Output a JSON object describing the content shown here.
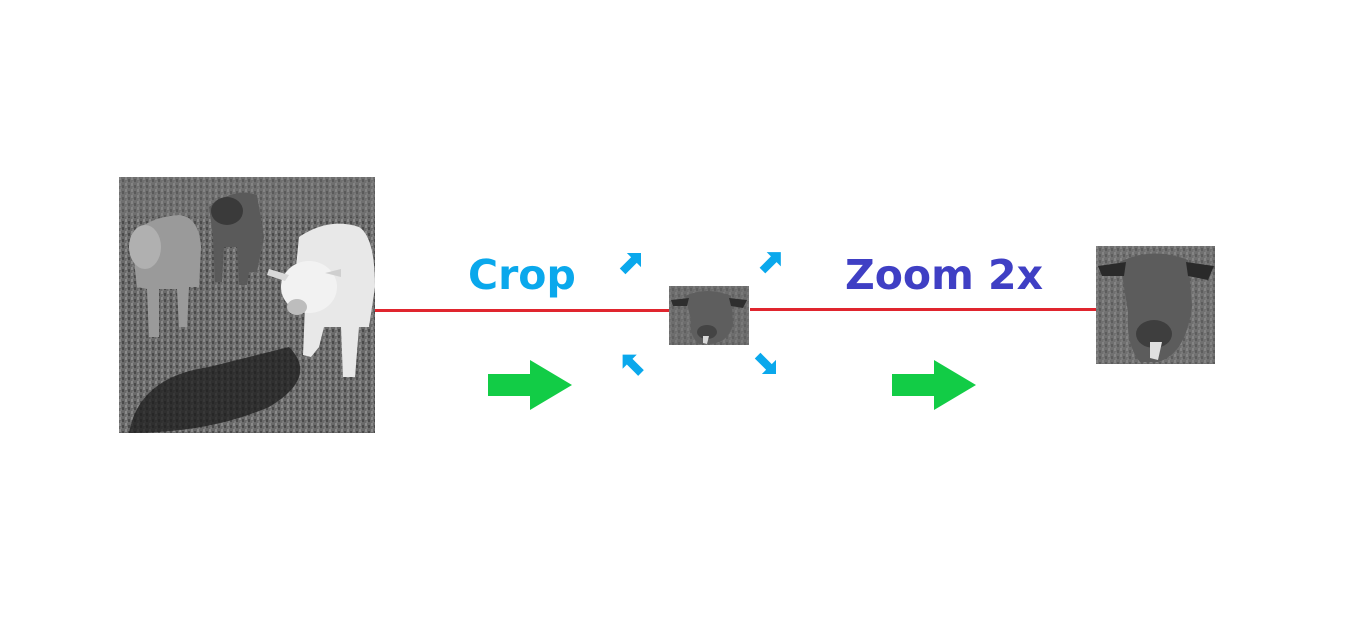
{
  "labels": {
    "crop": "Crop",
    "zoom": "Zoom 2x"
  },
  "colors": {
    "crop_label": "#0aa8ec",
    "zoom_label": "#3f3fc4",
    "connector_line": "#e0252e",
    "flow_arrow": "#12cc46",
    "crop_arrows": "#0aa8ec"
  },
  "images": {
    "original": "grayscale-photo-of-cows-in-pasture",
    "cropped": "cropped-cow-head",
    "zoomed": "zoomed-cow-head"
  },
  "icons": {
    "flow": "right-arrow-icon",
    "crop_corners": "diagonal-arrow-icon"
  }
}
